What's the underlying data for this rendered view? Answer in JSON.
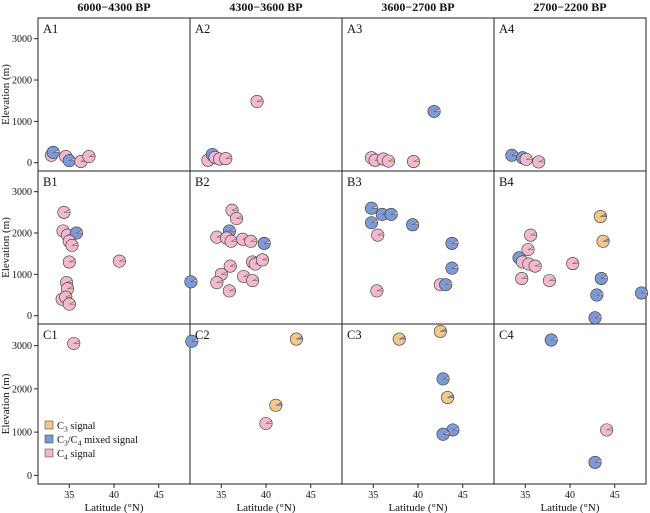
{
  "chart_data": {
    "type": "scatter",
    "layout": "3x4 grid of scatter panels with pie-chart markers",
    "column_headers": [
      "6000−4300 BP",
      "4300−3600 BP",
      "3600−2700 BP",
      "2700−2200 BP"
    ],
    "xlabel": "Latitude (°N)",
    "ylabel": "Elevation (m)",
    "xlim": [
      31.5,
      48.5
    ],
    "xticks": [
      35,
      40,
      45
    ],
    "rows": [
      {
        "id": "A",
        "ylim": [
          -200,
          3500
        ],
        "yticks": [
          0,
          1000,
          2000,
          3000
        ]
      },
      {
        "id": "B",
        "ylim": [
          -200,
          3500
        ],
        "yticks": [
          0,
          1000,
          2000,
          3000
        ]
      },
      {
        "id": "C",
        "ylim": [
          -200,
          3500
        ],
        "yticks": [
          0,
          1000,
          2000,
          3000
        ]
      }
    ],
    "legend": {
      "position": "bottom-left of panel C1",
      "entries": [
        {
          "key": "c3",
          "prefix": "C",
          "sub": "3",
          "suffix": " signal"
        },
        {
          "key": "mixed",
          "prefix": "C",
          "sub": "3",
          "mid": "/C",
          "sub2": "4",
          "suffix": " mixed signal"
        },
        {
          "key": "c4",
          "prefix": "C",
          "sub": "4",
          "suffix": " signal"
        }
      ]
    },
    "colors": {
      "c3": "#f2c88a",
      "mixed": "#7c9ad6",
      "c4": "#f2b8cf",
      "edge": "#333333"
    },
    "panels": [
      {
        "label": "A1",
        "row": 0,
        "col": 0,
        "points": [
          {
            "lat": 33.0,
            "elev": 180,
            "type": "c4"
          },
          {
            "lat": 33.2,
            "elev": 250,
            "type": "mixed"
          },
          {
            "lat": 34.6,
            "elev": 150,
            "type": "c4"
          },
          {
            "lat": 35.0,
            "elev": 50,
            "type": "mixed"
          },
          {
            "lat": 36.3,
            "elev": 30,
            "type": "c4"
          },
          {
            "lat": 37.2,
            "elev": 150,
            "type": "c4"
          }
        ]
      },
      {
        "label": "A2",
        "row": 0,
        "col": 1,
        "points": [
          {
            "lat": 33.5,
            "elev": 60,
            "type": "c4"
          },
          {
            "lat": 34.0,
            "elev": 200,
            "type": "mixed"
          },
          {
            "lat": 34.3,
            "elev": 130,
            "type": "c4"
          },
          {
            "lat": 34.8,
            "elev": 90,
            "type": "c4"
          },
          {
            "lat": 35.5,
            "elev": 100,
            "type": "c4"
          },
          {
            "lat": 39.0,
            "elev": 1480,
            "type": "c4"
          }
        ]
      },
      {
        "label": "A3",
        "row": 0,
        "col": 2,
        "points": [
          {
            "lat": 34.8,
            "elev": 120,
            "type": "c4"
          },
          {
            "lat": 35.2,
            "elev": 60,
            "type": "c4"
          },
          {
            "lat": 36.1,
            "elev": 90,
            "type": "c4"
          },
          {
            "lat": 36.7,
            "elev": 40,
            "type": "c4"
          },
          {
            "lat": 39.5,
            "elev": 30,
            "type": "c4"
          },
          {
            "lat": 41.8,
            "elev": 1240,
            "type": "mixed"
          }
        ]
      },
      {
        "label": "A4",
        "row": 0,
        "col": 3,
        "points": [
          {
            "lat": 33.5,
            "elev": 180,
            "type": "mixed"
          },
          {
            "lat": 34.7,
            "elev": 120,
            "type": "mixed"
          },
          {
            "lat": 35.1,
            "elev": 80,
            "type": "c4"
          },
          {
            "lat": 36.5,
            "elev": 20,
            "type": "c4"
          }
        ]
      },
      {
        "label": "B1",
        "row": 1,
        "col": 0,
        "points": [
          {
            "lat": 34.4,
            "elev": 2500,
            "type": "c4"
          },
          {
            "lat": 34.3,
            "elev": 2050,
            "type": "c4"
          },
          {
            "lat": 34.8,
            "elev": 1950,
            "type": "c4"
          },
          {
            "lat": 35.8,
            "elev": 2000,
            "type": "mixed"
          },
          {
            "lat": 35.0,
            "elev": 1800,
            "type": "c4"
          },
          {
            "lat": 35.3,
            "elev": 1700,
            "type": "c4"
          },
          {
            "lat": 35.0,
            "elev": 1300,
            "type": "c4"
          },
          {
            "lat": 40.6,
            "elev": 1320,
            "type": "c4"
          },
          {
            "lat": 34.7,
            "elev": 800,
            "type": "c4"
          },
          {
            "lat": 34.8,
            "elev": 650,
            "type": "c4"
          },
          {
            "lat": 34.2,
            "elev": 400,
            "type": "c4"
          },
          {
            "lat": 34.6,
            "elev": 450,
            "type": "c4"
          },
          {
            "lat": 35.0,
            "elev": 280,
            "type": "c4"
          },
          {
            "lat": 48.6,
            "elev": 820,
            "type": "mixed"
          }
        ]
      },
      {
        "label": "B2",
        "row": 1,
        "col": 1,
        "points": [
          {
            "lat": 36.2,
            "elev": 2550,
            "type": "c4"
          },
          {
            "lat": 36.7,
            "elev": 2350,
            "type": "c4"
          },
          {
            "lat": 35.9,
            "elev": 2050,
            "type": "mixed"
          },
          {
            "lat": 34.5,
            "elev": 1900,
            "type": "c4"
          },
          {
            "lat": 35.6,
            "elev": 1880,
            "type": "c4"
          },
          {
            "lat": 36.1,
            "elev": 1800,
            "type": "c4"
          },
          {
            "lat": 37.4,
            "elev": 1850,
            "type": "c4"
          },
          {
            "lat": 38.3,
            "elev": 1800,
            "type": "c4"
          },
          {
            "lat": 39.8,
            "elev": 1750,
            "type": "mixed"
          },
          {
            "lat": 38.5,
            "elev": 1300,
            "type": "c4"
          },
          {
            "lat": 38.8,
            "elev": 1250,
            "type": "c4"
          },
          {
            "lat": 39.6,
            "elev": 1350,
            "type": "c4"
          },
          {
            "lat": 36.0,
            "elev": 1200,
            "type": "c4"
          },
          {
            "lat": 37.5,
            "elev": 950,
            "type": "c4"
          },
          {
            "lat": 35.0,
            "elev": 1000,
            "type": "c4"
          },
          {
            "lat": 38.5,
            "elev": 850,
            "type": "c4"
          },
          {
            "lat": 34.5,
            "elev": 800,
            "type": "c4"
          },
          {
            "lat": 35.9,
            "elev": 600,
            "type": "c4"
          }
        ]
      },
      {
        "label": "B3",
        "row": 1,
        "col": 2,
        "points": [
          {
            "lat": 34.8,
            "elev": 2600,
            "type": "mixed"
          },
          {
            "lat": 36.0,
            "elev": 2450,
            "type": "mixed"
          },
          {
            "lat": 37.0,
            "elev": 2450,
            "type": "mixed"
          },
          {
            "lat": 34.8,
            "elev": 2250,
            "type": "mixed"
          },
          {
            "lat": 39.4,
            "elev": 2200,
            "type": "mixed"
          },
          {
            "lat": 35.5,
            "elev": 1950,
            "type": "c4"
          },
          {
            "lat": 43.8,
            "elev": 1750,
            "type": "mixed"
          },
          {
            "lat": 43.8,
            "elev": 1150,
            "type": "mixed"
          },
          {
            "lat": 42.5,
            "elev": 750,
            "type": "c4"
          },
          {
            "lat": 43.1,
            "elev": 750,
            "type": "mixed"
          },
          {
            "lat": 35.4,
            "elev": 600,
            "type": "c4"
          }
        ]
      },
      {
        "label": "B4",
        "row": 1,
        "col": 3,
        "points": [
          {
            "lat": 43.4,
            "elev": 2400,
            "type": "c3"
          },
          {
            "lat": 35.6,
            "elev": 1950,
            "type": "c4"
          },
          {
            "lat": 43.7,
            "elev": 1800,
            "type": "c3"
          },
          {
            "lat": 35.3,
            "elev": 1600,
            "type": "c4"
          },
          {
            "lat": 34.3,
            "elev": 1400,
            "type": "mixed"
          },
          {
            "lat": 34.7,
            "elev": 1300,
            "type": "c4"
          },
          {
            "lat": 35.4,
            "elev": 1250,
            "type": "c4"
          },
          {
            "lat": 36.1,
            "elev": 1200,
            "type": "c4"
          },
          {
            "lat": 40.3,
            "elev": 1260,
            "type": "c4"
          },
          {
            "lat": 34.6,
            "elev": 900,
            "type": "c4"
          },
          {
            "lat": 37.7,
            "elev": 850,
            "type": "c4"
          },
          {
            "lat": 43.5,
            "elev": 900,
            "type": "mixed"
          },
          {
            "lat": 43.0,
            "elev": 500,
            "type": "mixed"
          },
          {
            "lat": 48.0,
            "elev": 550,
            "type": "mixed"
          },
          {
            "lat": 42.8,
            "elev": -50,
            "type": "mixed"
          }
        ]
      },
      {
        "label": "C1",
        "row": 2,
        "col": 0,
        "points": [
          {
            "lat": 35.5,
            "elev": 3050,
            "type": "c4"
          },
          {
            "lat": 48.7,
            "elev": 3100,
            "type": "mixed"
          }
        ]
      },
      {
        "label": "C2",
        "row": 2,
        "col": 1,
        "points": [
          {
            "lat": 43.4,
            "elev": 3150,
            "type": "c3"
          },
          {
            "lat": 41.1,
            "elev": 1620,
            "type": "c3"
          },
          {
            "lat": 40.0,
            "elev": 1200,
            "type": "c4"
          }
        ]
      },
      {
        "label": "C3",
        "row": 2,
        "col": 2,
        "points": [
          {
            "lat": 37.9,
            "elev": 3150,
            "type": "c3"
          },
          {
            "lat": 42.5,
            "elev": 3330,
            "type": "c3"
          },
          {
            "lat": 42.8,
            "elev": 2230,
            "type": "mixed"
          },
          {
            "lat": 43.3,
            "elev": 1800,
            "type": "c3"
          },
          {
            "lat": 43.9,
            "elev": 1050,
            "type": "mixed"
          },
          {
            "lat": 42.8,
            "elev": 950,
            "type": "mixed"
          }
        ]
      },
      {
        "label": "C4",
        "row": 2,
        "col": 3,
        "points": [
          {
            "lat": 37.9,
            "elev": 3130,
            "type": "mixed"
          },
          {
            "lat": 44.1,
            "elev": 1050,
            "type": "c4"
          },
          {
            "lat": 42.8,
            "elev": 300,
            "type": "mixed"
          }
        ]
      }
    ]
  }
}
